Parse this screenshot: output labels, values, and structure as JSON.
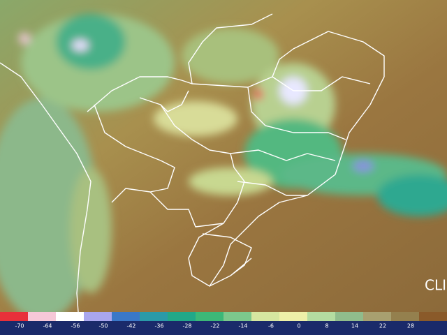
{
  "watermark": "CLI",
  "colorbar": {
    "colors": [
      "#e8303a",
      "#f6c8d8",
      "#ffffff",
      "#a9a6ee",
      "#3a78c8",
      "#2a9aa8",
      "#22a888",
      "#3cb878",
      "#7cc88c",
      "#d6e6a0",
      "#eef0a8",
      "#b4dca0",
      "#90bc8c",
      "#a8a070",
      "#94804e",
      "#8a5a2a"
    ],
    "ticks": [
      -70,
      -64,
      -56,
      -50,
      -42,
      -36,
      -28,
      -22,
      -14,
      -6,
      0,
      8,
      14,
      22,
      28
    ]
  }
}
